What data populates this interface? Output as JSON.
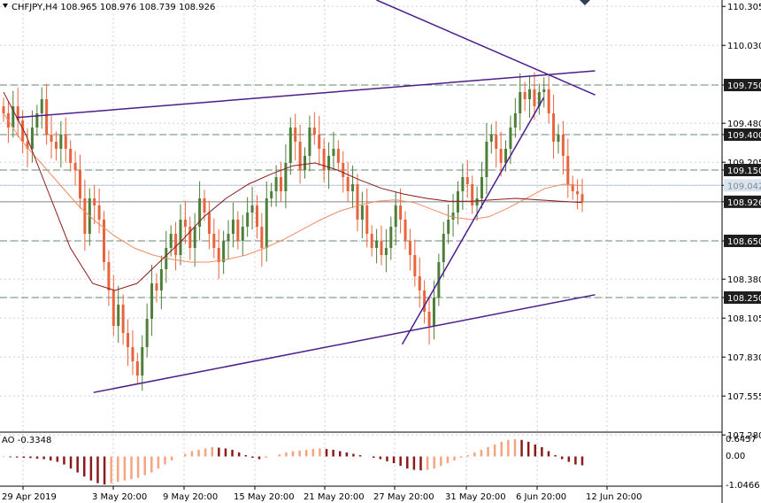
{
  "header": {
    "symbol_label": "CHFJPY,H4  108.965 108.976 108.739 108.926",
    "triangle_icon": "triangle-down-icon"
  },
  "oscillator": {
    "label": "AO -0.3348",
    "ticks": [
      "0.6457",
      "0.00",
      "-1.0466"
    ]
  },
  "colors": {
    "background": "#ffffff",
    "grid": "#c8d2dc",
    "bull_candle": "#4e7f3a",
    "bear_candle": "#e8643c",
    "ma_fast": "#f08c64",
    "ma_slow": "#8b1a1a",
    "trendline": "#4b1e8c",
    "ao_up": "#f4a580",
    "ao_down": "#8b1a1a",
    "level_label_bg": "#1e1e1e",
    "level_label_fg": "#ffffff",
    "dashed_level": "#6a8a6a"
  },
  "chart_data": {
    "type": "candlestick",
    "symbol": "CHFJPY",
    "timeframe": "H4",
    "ylim": [
      107.3,
      110.35
    ],
    "y_ticks": [
      "110.305",
      "110.030",
      "109.750",
      "109.480",
      "109.400",
      "109.205",
      "109.150",
      "109.042",
      "108.926",
      "108.650",
      "108.380",
      "108.250",
      "108.105",
      "107.830",
      "107.555",
      "107.280"
    ],
    "x_ticks": [
      "29 Apr 2019",
      "3 May 20:00",
      "9 May 20:00",
      "15 May 20:00",
      "21 May 20:00",
      "27 May 20:00",
      "31 May 20:00",
      "6 Jun 20:00",
      "12 Jun 20:00"
    ],
    "levels": [
      {
        "value": 109.75,
        "label": "109.750",
        "style": "dashed"
      },
      {
        "value": 109.4,
        "label": "109.400",
        "style": "dashed"
      },
      {
        "value": 109.15,
        "label": "109.150",
        "style": "dashed"
      },
      {
        "value": 109.042,
        "label": "109.042",
        "style": "solid"
      },
      {
        "value": 108.926,
        "label": "108.926",
        "style": "current"
      },
      {
        "value": 108.65,
        "label": "108.650",
        "style": "dashed"
      },
      {
        "value": 108.25,
        "label": "108.250",
        "style": "dashed"
      }
    ],
    "last_close": 108.926,
    "close_series": [
      109.55,
      109.45,
      109.6,
      109.5,
      109.35,
      109.3,
      109.45,
      109.55,
      109.65,
      109.4,
      109.35,
      109.3,
      109.4,
      109.3,
      109.2,
      109.15,
      108.95,
      108.7,
      108.95,
      108.9,
      108.8,
      108.5,
      108.3,
      108.05,
      108.2,
      108.0,
      107.9,
      107.8,
      107.7,
      107.9,
      108.1,
      108.35,
      108.3,
      108.45,
      108.6,
      108.7,
      108.55,
      108.8,
      108.75,
      108.6,
      108.75,
      108.95,
      108.85,
      108.7,
      108.6,
      108.5,
      108.65,
      108.7,
      108.8,
      108.65,
      108.75,
      108.85,
      108.9,
      108.75,
      108.6,
      108.95,
      109.0,
      109.1,
      109.0,
      109.2,
      109.45,
      109.35,
      109.15,
      109.25,
      109.45,
      109.4,
      109.3,
      109.15,
      109.25,
      109.3,
      109.2,
      109.1,
      109.0,
      109.05,
      108.8,
      108.9,
      108.7,
      108.6,
      108.65,
      108.55,
      108.6,
      108.75,
      108.9,
      108.8,
      108.65,
      108.55,
      108.4,
      108.3,
      108.15,
      108.05,
      108.25,
      108.5,
      108.7,
      108.8,
      108.85,
      109.0,
      109.1,
      109.05,
      108.9,
      108.95,
      109.1,
      109.35,
      109.4,
      109.3,
      109.2,
      109.3,
      109.45,
      109.55,
      109.7,
      109.65,
      109.72,
      109.6,
      109.7,
      109.72,
      109.55,
      109.35,
      109.4,
      109.25,
      109.05,
      109.0,
      108.98,
      108.926
    ],
    "ma_fast_series": [
      109.55,
      109.35,
      109.2,
      109.05,
      108.9,
      108.78,
      108.68,
      108.6,
      108.55,
      108.52,
      108.5,
      108.5,
      108.52,
      108.55,
      108.6,
      108.66,
      108.73,
      108.8,
      108.86,
      108.9,
      108.93,
      108.94,
      108.92,
      108.87,
      108.82,
      108.8,
      108.82,
      108.88,
      108.95,
      109.02,
      109.05,
      109.04
    ],
    "ma_slow_series": [
      109.7,
      109.4,
      109.0,
      108.6,
      108.35,
      108.3,
      108.35,
      108.5,
      108.65,
      108.82,
      108.95,
      109.05,
      109.12,
      109.18,
      109.2,
      109.15,
      109.08,
      109.02,
      108.98,
      108.95,
      108.93,
      108.93,
      108.94,
      108.95,
      108.94,
      108.93,
      108.92
    ],
    "trendlines": [
      {
        "name": "upper-channel",
        "from": [
          "2019-04-30",
          109.52
        ],
        "to": [
          "2019-06-14",
          109.85
        ]
      },
      {
        "name": "lower-channel",
        "from": [
          "2019-05-06",
          107.58
        ],
        "to": [
          "2019-06-14",
          108.27
        ]
      },
      {
        "name": "rising-support",
        "from": [
          "2019-05-30",
          107.92
        ],
        "to": [
          "2019-06-10",
          109.66
        ]
      },
      {
        "name": "falling-resistance",
        "from": [
          "2019-05-28",
          110.35
        ],
        "to": [
          "2019-06-14",
          109.68
        ]
      }
    ],
    "ao_values": [
      -0.02,
      -0.03,
      -0.04,
      -0.05,
      -0.06,
      -0.08,
      -0.1,
      -0.15,
      -0.2,
      -0.3,
      -0.45,
      -0.6,
      -0.75,
      -0.9,
      -1.0,
      -1.05,
      -1.0,
      -0.95,
      -0.9,
      -0.85,
      -0.8,
      -0.7,
      -0.6,
      -0.45,
      -0.3,
      -0.15,
      0.0,
      0.1,
      0.2,
      0.25,
      0.3,
      0.35,
      0.33,
      0.3,
      0.25,
      0.15,
      0.05,
      -0.05,
      -0.1,
      -0.05,
      0.0,
      0.08,
      0.15,
      0.2,
      0.22,
      0.25,
      0.28,
      0.3,
      0.28,
      0.25,
      0.2,
      0.15,
      0.1,
      0.05,
      0.0,
      -0.05,
      -0.1,
      -0.18,
      -0.25,
      -0.35,
      -0.45,
      -0.5,
      -0.52,
      -0.5,
      -0.45,
      -0.35,
      -0.25,
      -0.15,
      -0.05,
      0.05,
      0.15,
      0.25,
      0.35,
      0.45,
      0.55,
      0.62,
      0.65,
      0.62,
      0.55,
      0.45,
      0.35,
      0.2,
      0.05,
      -0.1,
      -0.2,
      -0.3,
      -0.33
    ]
  }
}
